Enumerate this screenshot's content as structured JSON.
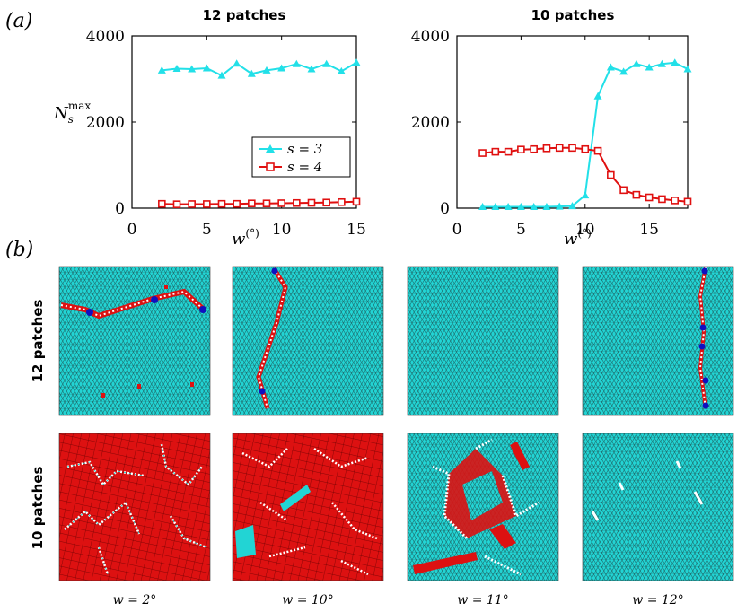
{
  "panel_a_label": "(a)",
  "panel_b_label": "(b)",
  "chart_data": [
    {
      "type": "line",
      "title": "12 patches",
      "xlabel": "w(°)",
      "ylabel": "N_s^max",
      "xlim": [
        0,
        15
      ],
      "ylim": [
        0,
        4000
      ],
      "xticks": [
        "0",
        "5",
        "10",
        "15"
      ],
      "yticks": [
        "0",
        "2000",
        "4000"
      ],
      "series": [
        {
          "name": "s = 3",
          "color": "#22e0e8",
          "marker": "triangle",
          "x": [
            2,
            3,
            4,
            5,
            6,
            7,
            8,
            9,
            10,
            11,
            12,
            13,
            14,
            15
          ],
          "values": [
            3200,
            3240,
            3230,
            3250,
            3080,
            3360,
            3120,
            3200,
            3250,
            3350,
            3230,
            3350,
            3180,
            3380
          ]
        },
        {
          "name": "s = 4",
          "color": "#e01010",
          "marker": "square",
          "x": [
            2,
            3,
            4,
            5,
            6,
            7,
            8,
            9,
            10,
            11,
            12,
            13,
            14,
            15
          ],
          "values": [
            100,
            90,
            95,
            95,
            100,
            100,
            110,
            110,
            115,
            120,
            125,
            130,
            140,
            150
          ]
        }
      ],
      "legend": {
        "position": "bottom-right",
        "entries": [
          "s = 3",
          "s = 4"
        ]
      }
    },
    {
      "type": "line",
      "title": "10 patches",
      "xlabel": "w(°)",
      "xlim": [
        0,
        18
      ],
      "ylim": [
        0,
        4000
      ],
      "xticks": [
        "0",
        "5",
        "10",
        "15"
      ],
      "yticks": [
        "0",
        "2000",
        "4000"
      ],
      "series": [
        {
          "name": "s = 3",
          "color": "#22e0e8",
          "marker": "triangle",
          "x": [
            2,
            3,
            4,
            5,
            6,
            7,
            8,
            9,
            10,
            11,
            12,
            13,
            14,
            15,
            16,
            17,
            18
          ],
          "values": [
            30,
            30,
            30,
            30,
            30,
            30,
            40,
            50,
            300,
            2600,
            3270,
            3170,
            3350,
            3270,
            3350,
            3380,
            3230
          ]
        },
        {
          "name": "s = 4",
          "color": "#e01010",
          "marker": "square",
          "x": [
            2,
            3,
            4,
            5,
            6,
            7,
            8,
            9,
            10,
            11,
            12,
            13,
            14,
            15,
            16,
            17,
            18
          ],
          "values": [
            1280,
            1310,
            1310,
            1360,
            1370,
            1390,
            1400,
            1400,
            1370,
            1330,
            770,
            420,
            310,
            250,
            210,
            180,
            150
          ]
        }
      ]
    }
  ],
  "snapshots": {
    "rows": [
      "12 patches",
      "10 patches"
    ],
    "captions": [
      "w = 2°",
      "w = 10°",
      "w = 11°",
      "w = 12°"
    ]
  },
  "colors": {
    "cyan": "#22d4d4",
    "red": "#dd1111",
    "blue": "#1010c0",
    "white": "#ffffff"
  }
}
